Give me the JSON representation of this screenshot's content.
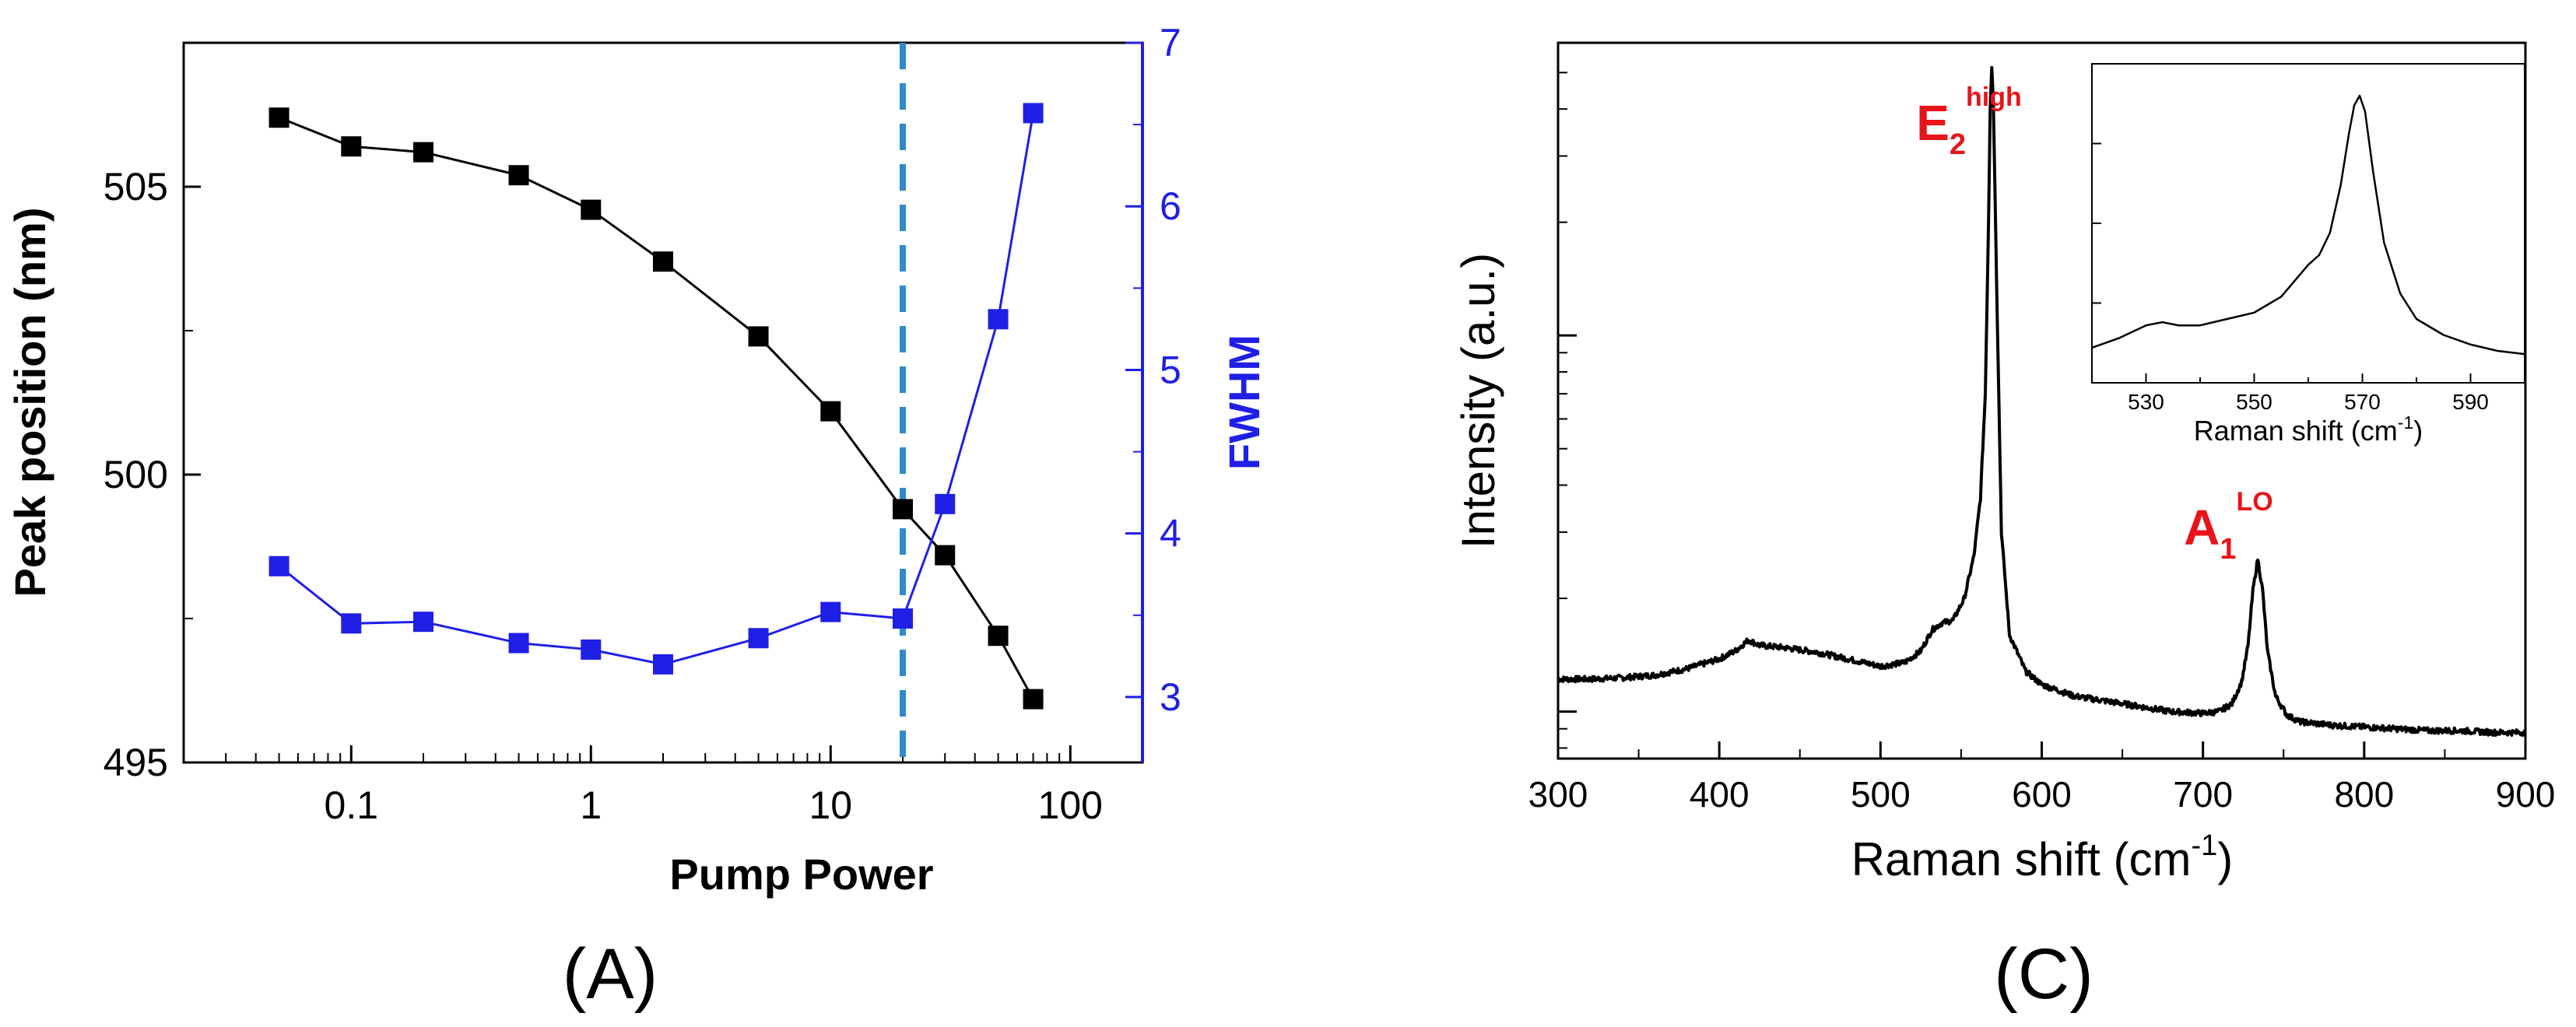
{
  "chart_data": [
    {
      "type": "line",
      "panel_label": "(A)",
      "xlabel": "Pump Power",
      "xscale": "log",
      "xlim": [
        0.02,
        200
      ],
      "xticks": [
        0.1,
        1,
        10,
        100
      ],
      "xtick_labels": [
        "0.1",
        "1",
        "10",
        "100"
      ],
      "ylabel_left": "Peak position (nm)",
      "ylim_left": [
        495,
        507.5
      ],
      "yticks_left": [
        495,
        500,
        505
      ],
      "ytick_labels_left": [
        "495",
        "500",
        "505"
      ],
      "ylabel_right": "FWHM",
      "ylim_right": [
        2.6,
        7
      ],
      "yticks_right": [
        3,
        4,
        5,
        6,
        7
      ],
      "ytick_labels_right": [
        "3",
        "4",
        "5",
        "6",
        "7"
      ],
      "grid": false,
      "vline": {
        "x": 20,
        "style": "dashed",
        "color": "#2e8bc9"
      },
      "series": [
        {
          "name": "Peak position",
          "axis": "left",
          "color": "#000000",
          "marker": "square",
          "x": [
            0.05,
            0.1,
            0.2,
            0.5,
            1,
            2,
            5,
            10,
            20,
            30,
            50,
            70
          ],
          "y": [
            506.2,
            505.7,
            505.6,
            505.2,
            504.6,
            503.7,
            502.4,
            501.1,
            499.4,
            498.6,
            497.2,
            496.1
          ]
        },
        {
          "name": "FWHM",
          "axis": "right",
          "color": "#1f1fe6",
          "marker": "square",
          "x": [
            0.05,
            0.1,
            0.2,
            0.5,
            1,
            2,
            5,
            10,
            20,
            30,
            50,
            70
          ],
          "y": [
            3.8,
            3.45,
            3.46,
            3.33,
            3.29,
            3.2,
            3.36,
            3.52,
            3.48,
            4.18,
            5.31,
            6.57
          ]
        }
      ]
    },
    {
      "type": "line",
      "panel_label": "(C)",
      "xlabel": "Raman shift (cm",
      "xlabel_sup": "-1",
      "xlabel_end": ")",
      "ylabel": "Intensity (a.u.)",
      "xlim": [
        300,
        900
      ],
      "xticks": [
        300,
        400,
        500,
        600,
        700,
        800,
        900
      ],
      "xtick_labels": [
        "300",
        "400",
        "500",
        "600",
        "700",
        "800",
        "900"
      ],
      "yscale": "log",
      "ylim": [
        0.75,
        60
      ],
      "grid": false,
      "peak_labels": [
        {
          "base": "E",
          "sub": "2",
          "sup": "high",
          "x": 568,
          "color": "#e8141a"
        },
        {
          "base": "A",
          "sub": "1",
          "sup": "LO",
          "x": 734,
          "color": "#e8141a"
        }
      ],
      "series": [
        {
          "name": "Raman spectrum",
          "color": "#000000",
          "x": [
            300,
            320,
            340,
            360,
            380,
            400,
            410,
            418,
            425,
            440,
            460,
            480,
            500,
            515,
            525,
            532,
            538,
            545,
            552,
            558,
            562,
            565,
            567,
            568,
            569,
            570,
            572,
            575,
            580,
            590,
            600,
            620,
            650,
            680,
            700,
            710,
            718,
            724,
            728,
            731,
            734,
            737,
            740,
            745,
            752,
            760,
            780,
            800,
            820,
            840,
            860,
            880,
            900
          ],
          "y": [
            1.22,
            1.22,
            1.23,
            1.25,
            1.3,
            1.38,
            1.45,
            1.55,
            1.5,
            1.48,
            1.44,
            1.38,
            1.32,
            1.35,
            1.45,
            1.65,
            1.72,
            1.75,
            2.0,
            2.6,
            3.7,
            7.0,
            20.0,
            40.0,
            52.0,
            42.0,
            14.0,
            3.0,
            1.6,
            1.28,
            1.18,
            1.1,
            1.05,
            1.0,
            0.99,
            1.0,
            1.05,
            1.2,
            1.5,
            2.1,
            2.55,
            2.1,
            1.45,
            1.1,
            0.98,
            0.94,
            0.92,
            0.91,
            0.9,
            0.89,
            0.89,
            0.88,
            0.88
          ]
        }
      ],
      "inset": {
        "xlabel": "Raman shift (cm",
        "xlabel_sup": "-1",
        "xlabel_end": ")",
        "xlim": [
          520,
          600
        ],
        "xticks": [
          530,
          550,
          570,
          590
        ],
        "xtick_labels": [
          "530",
          "550",
          "570",
          "590"
        ],
        "ylim": [
          0,
          1
        ],
        "x": [
          520,
          525,
          530,
          533,
          536,
          540,
          545,
          550,
          555,
          558,
          560,
          562,
          564,
          566,
          567.5,
          568.5,
          569.5,
          570.5,
          572,
          574,
          577,
          580,
          585,
          590,
          595,
          600
        ],
        "y": [
          0.11,
          0.14,
          0.18,
          0.19,
          0.18,
          0.18,
          0.2,
          0.22,
          0.27,
          0.33,
          0.37,
          0.4,
          0.47,
          0.62,
          0.78,
          0.87,
          0.9,
          0.85,
          0.66,
          0.44,
          0.28,
          0.2,
          0.15,
          0.12,
          0.1,
          0.09
        ]
      }
    }
  ]
}
